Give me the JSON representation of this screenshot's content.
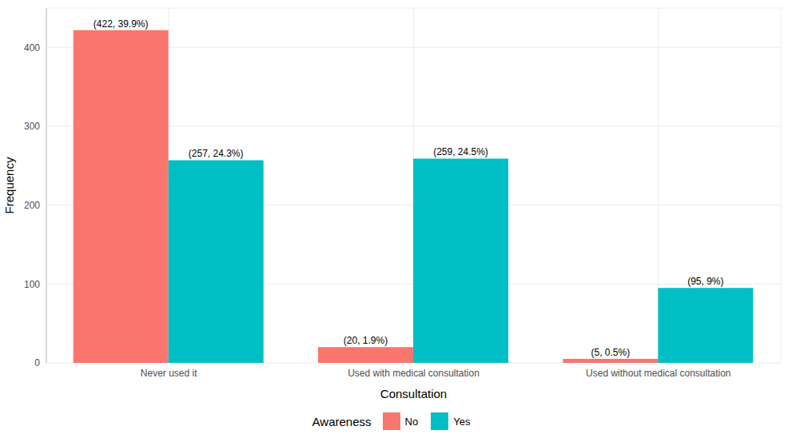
{
  "chart_data": {
    "type": "bar",
    "x_label": "Consultation",
    "y_label": "Frequency",
    "legend_title": "Awareness",
    "categories": [
      "Never used it",
      "Used with medical consultation",
      "Used without medical consultation"
    ],
    "series": [
      {
        "name": "No",
        "color": "#F8766D",
        "values": [
          422,
          20,
          5
        ],
        "value_labels": [
          "(422, 39.9%)",
          "(20, 1.9%)",
          "(5, 0.5%)"
        ]
      },
      {
        "name": "Yes",
        "color": "#00BFC4",
        "values": [
          257,
          259,
          95
        ],
        "value_labels": [
          "(257, 24.3%)",
          "(259, 24.5%)",
          "(95, 9%)"
        ]
      }
    ],
    "ylim": [
      0,
      450
    ],
    "yticks": [
      0,
      100,
      200,
      300,
      400
    ],
    "grid": true,
    "legend": "bottom",
    "data_labels": true
  }
}
